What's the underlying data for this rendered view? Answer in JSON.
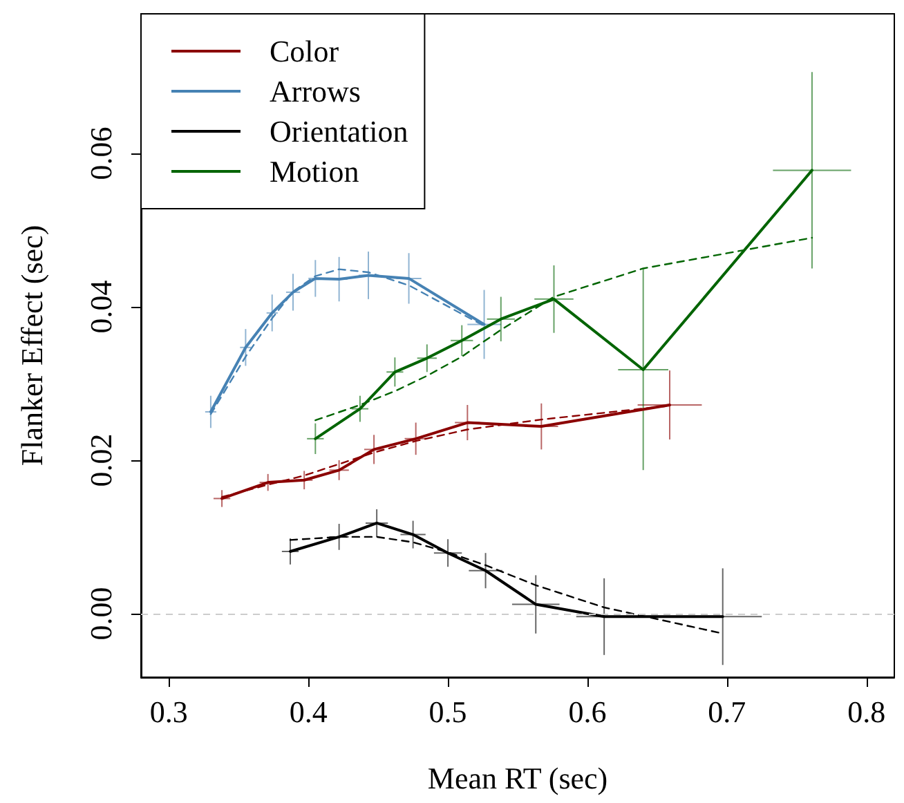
{
  "chart_data": {
    "type": "line",
    "xlabel": "Mean RT (sec)",
    "ylabel": "Flanker Effect (sec)",
    "xlim": [
      0.28,
      0.82
    ],
    "xticks": [
      0.3,
      0.4,
      0.5,
      0.6,
      0.7,
      0.8
    ],
    "ylim": [
      -0.0083,
      0.0782
    ],
    "yticks": [
      {
        "value": 0,
        "label": "0.00"
      },
      {
        "value": 0.02,
        "label": "0.02"
      },
      {
        "value": 0.04,
        "label": "0.04"
      },
      {
        "value": 0.06,
        "label": "0.06"
      }
    ],
    "grid": false,
    "legend": "top left",
    "marker": "none",
    "ref_lines": [
      {
        "axis": "y",
        "value": 0,
        "color": "#cccccc",
        "line_style": "dashed"
      }
    ],
    "series": [
      {
        "name": "Color",
        "color": "#8b0000",
        "line_style": "solid",
        "x": [
          0.338,
          0.371,
          0.397,
          0.422,
          0.447,
          0.477,
          0.514,
          0.567,
          0.659
        ],
        "values": [
          0.015,
          0.0171,
          0.0174,
          0.0187,
          0.0214,
          0.0228,
          0.0249,
          0.0244,
          0.0272
        ],
        "errors": [
          0.0011,
          0.0011,
          0.0012,
          0.0013,
          0.0019,
          0.0021,
          0.0023,
          0.003,
          0.0045
        ],
        "xerrors": [
          0.006,
          0.006,
          0.006,
          0.007,
          0.007,
          0.008,
          0.009,
          0.012,
          0.023
        ]
      },
      {
        "name": "Arrows",
        "color": "#4682b4",
        "line_style": "solid",
        "x": [
          0.33,
          0.355,
          0.374,
          0.389,
          0.405,
          0.422,
          0.443,
          0.472,
          0.526
        ],
        "values": [
          0.0263,
          0.0347,
          0.0392,
          0.0419,
          0.0437,
          0.0436,
          0.0441,
          0.0437,
          0.0377
        ],
        "errors": [
          0.0021,
          0.0024,
          0.0024,
          0.0024,
          0.0024,
          0.0029,
          0.0031,
          0.0033,
          0.0045
        ],
        "xerrors": [
          0.004,
          0.004,
          0.004,
          0.005,
          0.005,
          0.006,
          0.007,
          0.009,
          0.012
        ]
      },
      {
        "name": "Orientation",
        "color": "#000000",
        "line_style": "solid",
        "x": [
          0.387,
          0.422,
          0.449,
          0.475,
          0.5,
          0.527,
          0.563,
          0.612,
          0.697
        ],
        "values": [
          0.0081,
          0.01,
          0.0118,
          0.0103,
          0.0079,
          0.0056,
          0.0012,
          -0.0004,
          -0.0004
        ],
        "errors": [
          0.0017,
          0.0017,
          0.0018,
          0.0018,
          0.0018,
          0.0023,
          0.0038,
          0.005,
          0.0063
        ],
        "xerrors": [
          0.006,
          0.007,
          0.008,
          0.009,
          0.01,
          0.012,
          0.017,
          0.02,
          0.028
        ]
      },
      {
        "name": "Motion",
        "color": "#006400",
        "line_style": "solid",
        "x": [
          0.405,
          0.437,
          0.462,
          0.485,
          0.51,
          0.538,
          0.576,
          0.64,
          0.761
        ],
        "values": [
          0.0228,
          0.0267,
          0.0315,
          0.0333,
          0.0356,
          0.0384,
          0.041,
          0.0318,
          0.0578
        ],
        "errors": [
          0.002,
          0.0017,
          0.0019,
          0.0018,
          0.002,
          0.0029,
          0.0044,
          0.0131,
          0.0128
        ],
        "xerrors": [
          0.006,
          0.006,
          0.006,
          0.007,
          0.008,
          0.01,
          0.014,
          0.018,
          0.028
        ]
      },
      {
        "color": "#8b0000",
        "line_style": "dashed",
        "x": [
          0.338,
          0.371,
          0.397,
          0.422,
          0.447,
          0.477,
          0.514,
          0.567,
          0.659
        ],
        "values": [
          0.0152,
          0.0168,
          0.018,
          0.0195,
          0.021,
          0.0225,
          0.024,
          0.0253,
          0.0271
        ]
      },
      {
        "color": "#4682b4",
        "line_style": "dashed",
        "x": [
          0.33,
          0.355,
          0.374,
          0.389,
          0.405,
          0.422,
          0.443,
          0.472,
          0.526
        ],
        "values": [
          0.026,
          0.0335,
          0.0385,
          0.042,
          0.044,
          0.0449,
          0.0445,
          0.0428,
          0.0375
        ]
      },
      {
        "color": "#000000",
        "line_style": "dashed",
        "x": [
          0.387,
          0.422,
          0.449,
          0.475,
          0.5,
          0.527,
          0.563,
          0.612,
          0.697
        ],
        "values": [
          0.0096,
          0.01,
          0.01,
          0.0093,
          0.008,
          0.0063,
          0.0037,
          0.0008,
          -0.0026
        ]
      },
      {
        "color": "#006400",
        "line_style": "dashed",
        "x": [
          0.405,
          0.437,
          0.462,
          0.485,
          0.51,
          0.538,
          0.576,
          0.64,
          0.761
        ],
        "values": [
          0.0252,
          0.0272,
          0.029,
          0.031,
          0.0335,
          0.037,
          0.0413,
          0.045,
          0.049
        ]
      }
    ]
  }
}
